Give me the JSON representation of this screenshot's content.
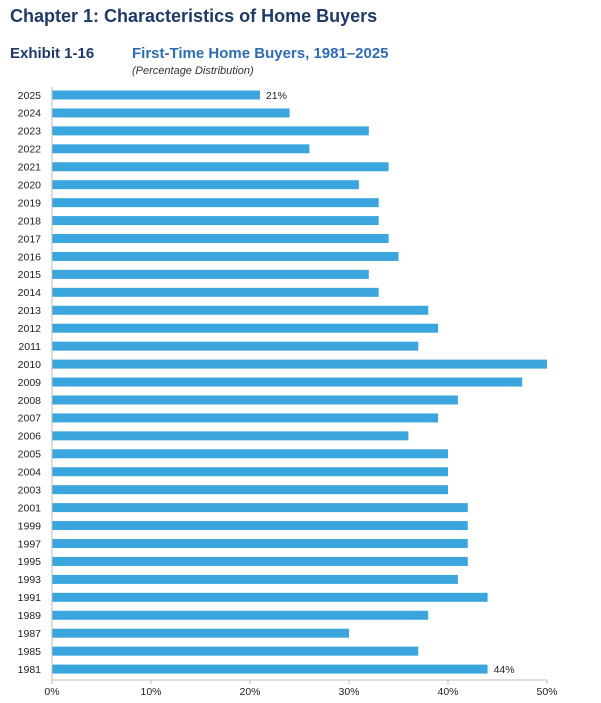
{
  "page": {
    "chapter_title": "Chapter 1: Characteristics of Home Buyers",
    "exhibit_label": "Exhibit 1-16",
    "exhibit_title": "First-Time Home Buyers, 1981–2025",
    "exhibit_subtitle": "(Percentage Distribution)"
  },
  "colors": {
    "bar": "#3ba6dd",
    "axis": "#bbbbbb"
  },
  "chart_data": {
    "type": "bar",
    "orientation": "horizontal",
    "title": "First-Time Home Buyers, 1981–2025",
    "subtitle": "(Percentage Distribution)",
    "xlabel": "",
    "ylabel": "",
    "xlim": [
      0,
      50
    ],
    "xticks": [
      0,
      10,
      20,
      30,
      40,
      50
    ],
    "xtick_labels": [
      "0%",
      "10%",
      "20%",
      "30%",
      "40%",
      "50%"
    ],
    "unit_suffix": "%",
    "grid": false,
    "categories": [
      "2025",
      "2024",
      "2023",
      "2022",
      "2021",
      "2020",
      "2019",
      "2018",
      "2017",
      "2016",
      "2015",
      "2014",
      "2013",
      "2012",
      "2011",
      "2010",
      "2009",
      "2008",
      "2007",
      "2006",
      "2005",
      "2004",
      "2003",
      "2001",
      "1999",
      "1997",
      "1995",
      "1993",
      "1991",
      "1989",
      "1987",
      "1985",
      "1981"
    ],
    "values": [
      21,
      24,
      32,
      26,
      34,
      31,
      33,
      33,
      34,
      35,
      32,
      33,
      38,
      39,
      37,
      50,
      47.5,
      41,
      39,
      36,
      40,
      40,
      40,
      42,
      42,
      42,
      42,
      41,
      44,
      38,
      30,
      37,
      44
    ],
    "data_labels": [
      {
        "category": "2025",
        "text": "21%"
      },
      {
        "category": "1981",
        "text": "44%"
      }
    ]
  }
}
